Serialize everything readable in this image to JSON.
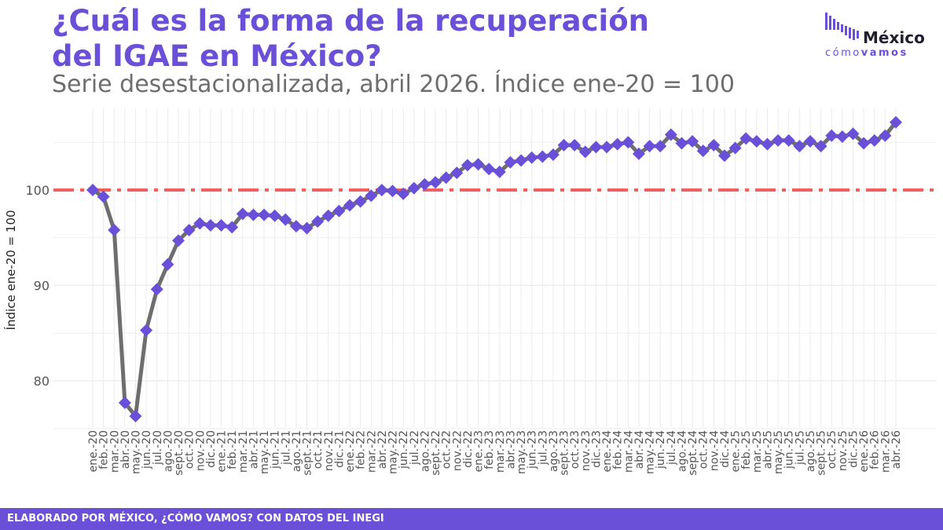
{
  "header": {
    "title_line1": "¿Cuál es la forma de la recuperación",
    "title_line2": "del IGAE en México?",
    "subtitle": "Serie desestacionalizada, abril 2026. Índice ene-20 = 100"
  },
  "logo": {
    "word": "México",
    "sub_light": "cómo",
    "sub_bold": "vamos"
  },
  "footer": {
    "text": "ELABORADO POR MÉXICO, ¿CÓMO VAMOS? CON DATOS DEL INEGI"
  },
  "colors": {
    "title": "#6a4fd8",
    "line": "#6e6e6e",
    "marker": "#6a4fd8",
    "reference": "#f15f5f",
    "grid": "#ebebeb",
    "footer_bg": "#6a4fd8"
  },
  "chart_data": {
    "type": "line",
    "title": "¿Cuál es la forma de la recuperación del IGAE en México?",
    "subtitle": "Serie desestacionalizada, abril 2026. Índice ene-20 = 100",
    "xlabel": "",
    "ylabel": "Índice ene-20 = 100",
    "ylim": [
      74.5,
      108.5
    ],
    "yticks": [
      80,
      90,
      100
    ],
    "grid": true,
    "legend": "none",
    "reference_line": {
      "y": 100,
      "style": "dash-dot"
    },
    "categories": [
      "ene.-20",
      "feb.-20",
      "mar.-20",
      "abr.-20",
      "may.-20",
      "jun.-20",
      "jul.-20",
      "ago.-20",
      "sept.-20",
      "oct.-20",
      "nov.-20",
      "dic.-20",
      "ene.-21",
      "feb.-21",
      "mar.-21",
      "abr.-21",
      "may.-21",
      "jun.-21",
      "jul.-21",
      "ago.-21",
      "sept.-21",
      "oct.-21",
      "nov.-21",
      "dic.-21",
      "ene.-22",
      "feb.-22",
      "mar.-22",
      "abr.-22",
      "may.-22",
      "jun.-22",
      "jul.-22",
      "ago.-22",
      "sept.-22",
      "oct.-22",
      "nov.-22",
      "dic.-22",
      "ene.-23",
      "feb.-23",
      "mar.-23",
      "abr.-23",
      "may.-23",
      "jun.-23",
      "jul.-23",
      "ago.-23",
      "sept.-23",
      "oct.-23",
      "nov.-23",
      "dic.-23",
      "ene.-24",
      "feb.-24",
      "mar.-24",
      "abr.-24",
      "may.-24",
      "jun.-24",
      "jul.-24",
      "ago.-24",
      "sept.-24",
      "oct.-24",
      "nov.-24",
      "dic.-24",
      "ene.-25",
      "feb.-25",
      "mar.-25",
      "abr.-25",
      "may.-25",
      "jun.-25",
      "jul.-25",
      "ago.-25",
      "sept.-25",
      "oct.-25",
      "nov.-25",
      "dic.-25",
      "ene.-26",
      "feb.-26",
      "mar.-26",
      "abr.-26"
    ],
    "values": [
      100.0,
      99.3,
      95.8,
      77.7,
      76.3,
      85.3,
      89.6,
      92.2,
      94.7,
      95.8,
      96.5,
      96.3,
      96.3,
      96.1,
      97.5,
      97.4,
      97.4,
      97.3,
      96.9,
      96.2,
      96.0,
      96.7,
      97.3,
      97.8,
      98.4,
      98.8,
      99.4,
      100.0,
      99.9,
      99.6,
      100.2,
      100.6,
      100.8,
      101.3,
      101.8,
      102.6,
      102.7,
      102.2,
      101.9,
      102.9,
      103.1,
      103.4,
      103.5,
      103.7,
      104.7,
      104.7,
      104.0,
      104.5,
      104.5,
      104.8,
      105.0,
      103.8,
      104.6,
      104.6,
      105.8,
      104.9,
      105.1,
      104.1,
      104.7,
      103.6,
      104.4,
      105.4,
      105.1,
      104.8,
      105.2,
      105.2,
      104.6,
      105.1,
      104.6,
      105.7,
      105.6,
      105.9,
      104.9,
      105.2,
      105.7,
      107.1
    ]
  }
}
